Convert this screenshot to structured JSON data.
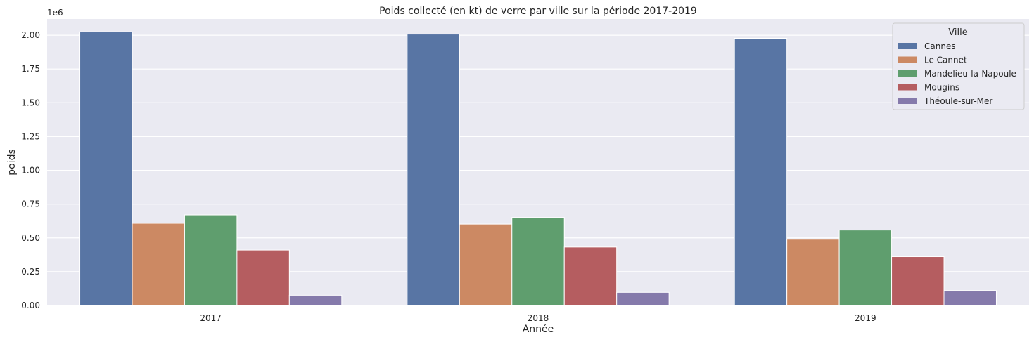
{
  "chart_data": {
    "type": "bar",
    "title": "Poids collecté (en kt) de verre par ville sur la période 2017-2019",
    "xlabel": "Année",
    "ylabel": "poids",
    "y_scale_label": "1e6",
    "categories": [
      "2017",
      "2018",
      "2019"
    ],
    "ylim": [
      0,
      2120000
    ],
    "y_ticks": [
      0,
      250000,
      500000,
      750000,
      1000000,
      1250000,
      1500000,
      1750000,
      2000000
    ],
    "y_tick_labels": [
      "0.00",
      "0.25",
      "0.50",
      "0.75",
      "1.00",
      "1.25",
      "1.50",
      "1.75",
      "2.00"
    ],
    "grid": true,
    "legend": {
      "title": "Ville",
      "placement": "top-right"
    },
    "series": [
      {
        "name": "Cannes",
        "color": "#5875a4",
        "values": [
          2025000,
          2008000,
          1977000
        ]
      },
      {
        "name": "Le Cannet",
        "color": "#cc8963",
        "values": [
          608000,
          602000,
          490000
        ]
      },
      {
        "name": "Mandelieu-la-Napoule",
        "color": "#5f9e6e",
        "values": [
          670000,
          651000,
          558000
        ]
      },
      {
        "name": "Mougins",
        "color": "#b55d60",
        "values": [
          410000,
          432000,
          361000
        ]
      },
      {
        "name": "Théoule-sur-Mer",
        "color": "#857aab",
        "values": [
          76000,
          97000,
          110000
        ]
      }
    ]
  }
}
